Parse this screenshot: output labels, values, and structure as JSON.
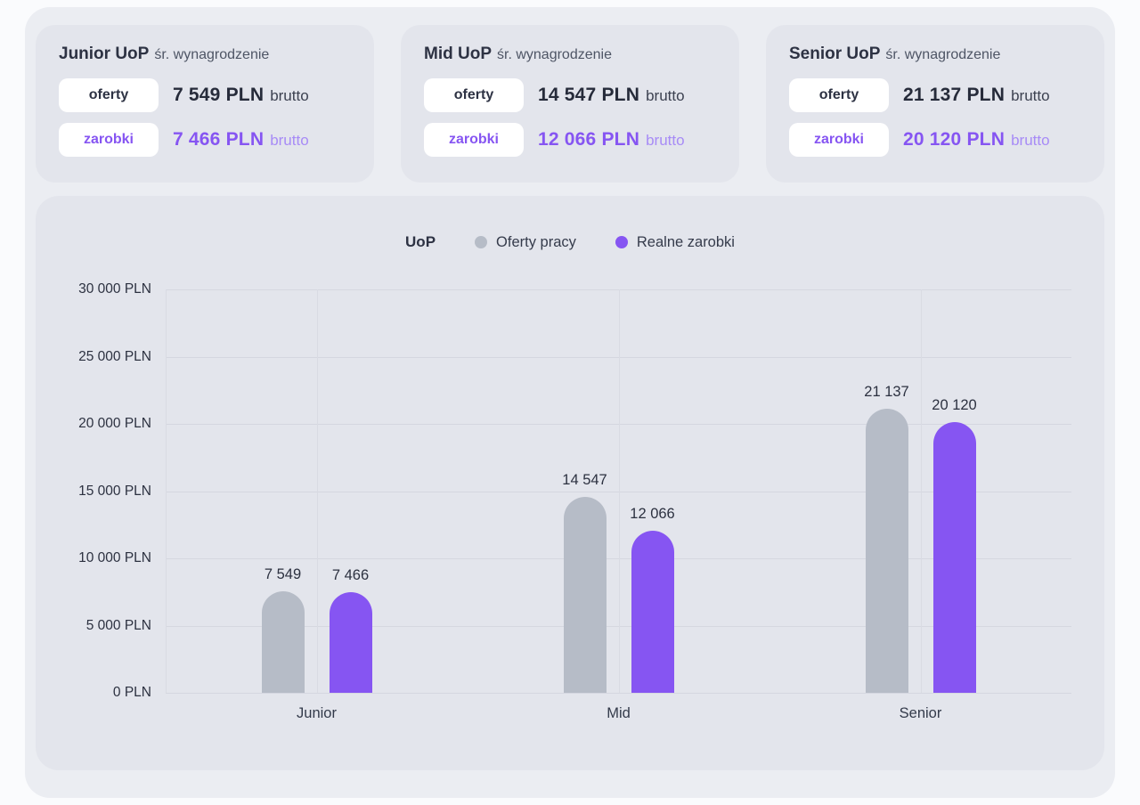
{
  "colors": {
    "accent_purple": "#8655f2",
    "bar_gray": "#b6bcc7",
    "card_background": "#e3e5ec",
    "text_dark": "#2d3243"
  },
  "cards": [
    {
      "title": "Junior UoP",
      "subtitle": "śr. wynagrodzenie",
      "rows": [
        {
          "badge": "oferty",
          "value": "7 549 PLN",
          "suffix": "brutto"
        },
        {
          "badge": "zarobki",
          "value": "7 466 PLN",
          "suffix": "brutto"
        }
      ]
    },
    {
      "title": "Mid UoP",
      "subtitle": "śr. wynagrodzenie",
      "rows": [
        {
          "badge": "oferty",
          "value": "14 547 PLN",
          "suffix": "brutto"
        },
        {
          "badge": "zarobki",
          "value": "12 066 PLN",
          "suffix": "brutto"
        }
      ]
    },
    {
      "title": "Senior UoP",
      "subtitle": "śr. wynagrodzenie",
      "rows": [
        {
          "badge": "oferty",
          "value": "21 137 PLN",
          "suffix": "brutto"
        },
        {
          "badge": "zarobki",
          "value": "20 120 PLN",
          "suffix": "brutto"
        }
      ]
    }
  ],
  "chart_data": {
    "type": "bar",
    "title": "UoP",
    "categories": [
      "Junior",
      "Mid",
      "Senior"
    ],
    "series": [
      {
        "name": "Oferty pracy",
        "color": "#b6bcc7",
        "values": [
          7549,
          14547,
          21137
        ],
        "labels": [
          "7 549",
          "14 547",
          "21 137"
        ]
      },
      {
        "name": "Realne zarobki",
        "color": "#8655f2",
        "values": [
          7466,
          12066,
          20120
        ],
        "labels": [
          "7 466",
          "12 066",
          "20 120"
        ]
      }
    ],
    "ylim": [
      0,
      30000
    ],
    "ytick_step": 5000,
    "ytick_labels": [
      "0 PLN",
      "5 000 PLN",
      "10 000 PLN",
      "15 000 PLN",
      "20 000 PLN",
      "25 000 PLN",
      "30 000 PLN"
    ],
    "legend_position": "top",
    "grid": true
  }
}
